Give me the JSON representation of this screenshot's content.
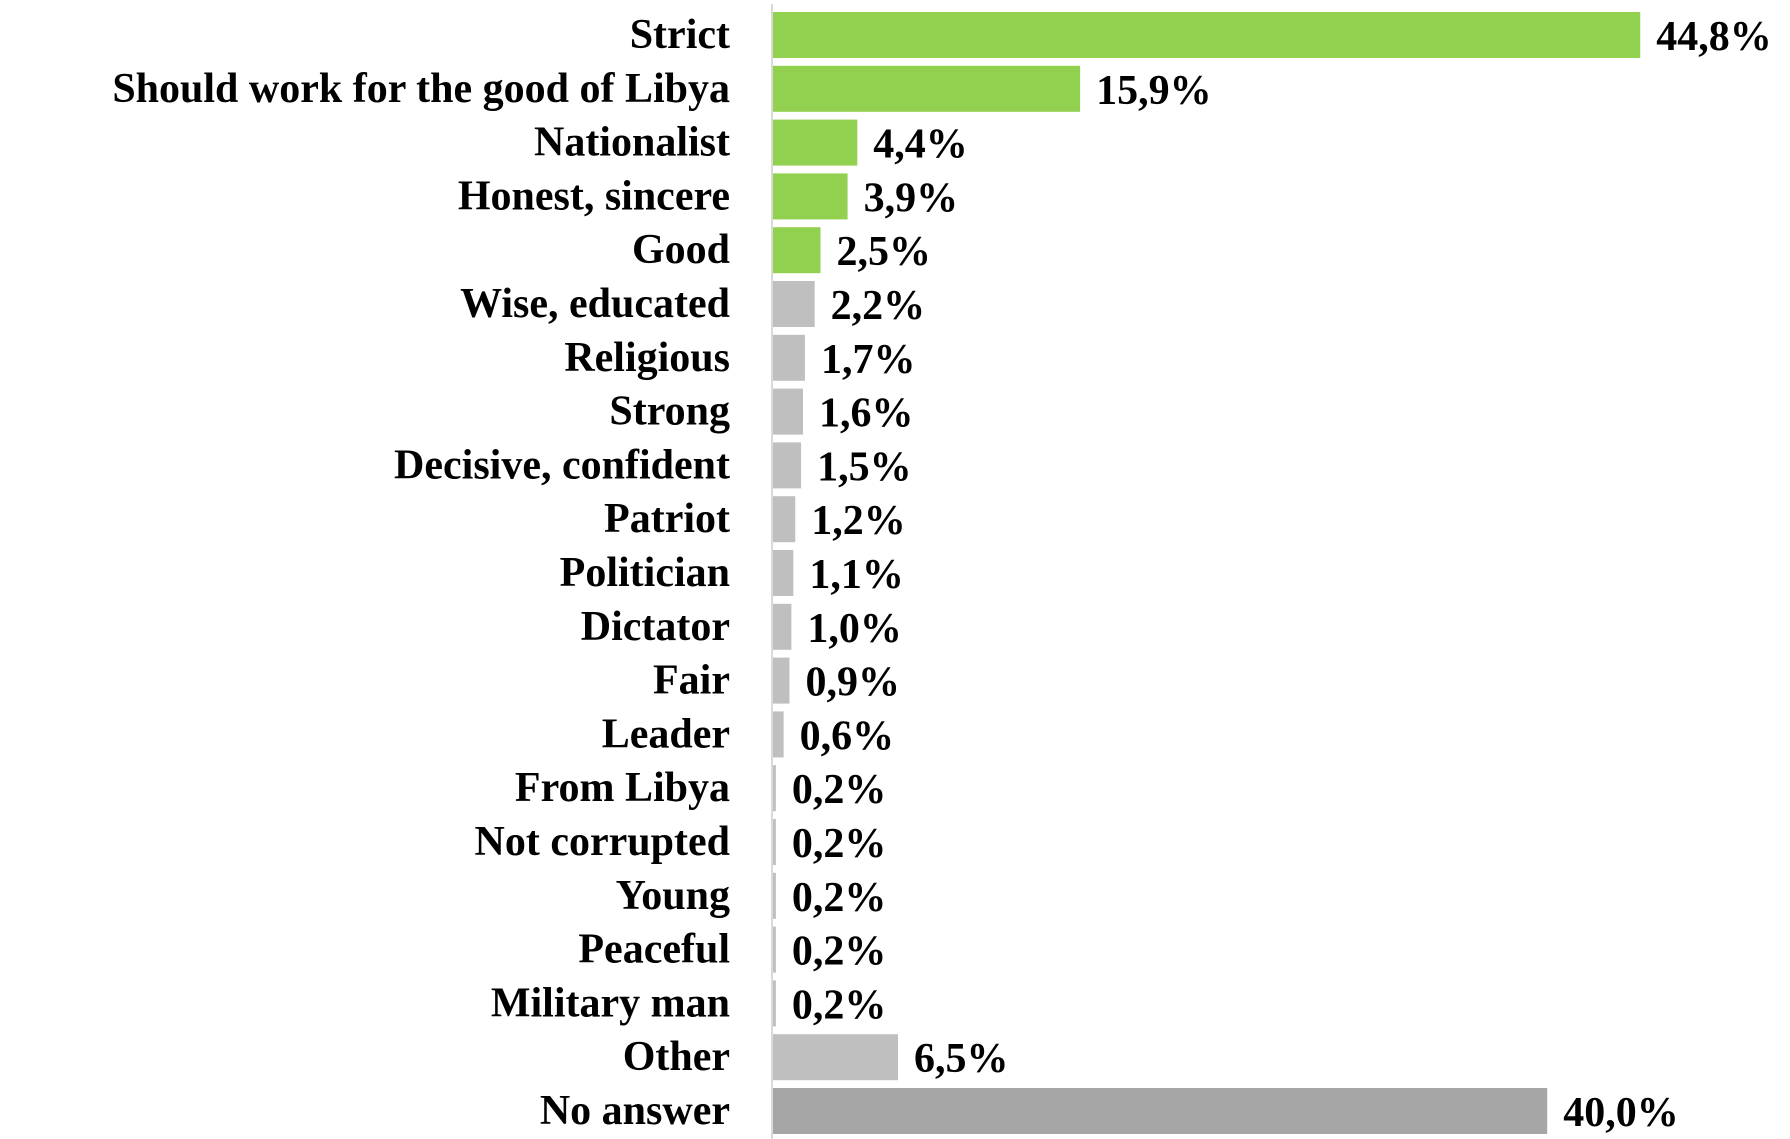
{
  "chart_data": {
    "type": "bar",
    "orientation": "horizontal",
    "categories": [
      "Strict",
      "Should work for the good of Libya",
      "Nationalist",
      "Honest, sincere",
      "Good",
      "Wise, educated",
      "Religious",
      "Strong",
      "Decisive, confident",
      "Patriot",
      "Politician",
      "Dictator",
      "Fair",
      "Leader",
      "From Libya",
      "Not corrupted",
      "Young",
      "Peaceful",
      "Military man",
      "Other",
      "No answer"
    ],
    "values": [
      44.8,
      15.9,
      4.4,
      3.9,
      2.5,
      2.2,
      1.7,
      1.6,
      1.5,
      1.2,
      1.1,
      1.0,
      0.9,
      0.6,
      0.2,
      0.2,
      0.2,
      0.2,
      0.2,
      6.5,
      40.0
    ],
    "value_labels": [
      "44,8%",
      "15,9%",
      "4,4%",
      "3,9%",
      "2,5%",
      "2,2%",
      "1,7%",
      "1,6%",
      "1,5%",
      "1,2%",
      "1,1%",
      "1,0%",
      "0,9%",
      "0,6%",
      "0,2%",
      "0,2%",
      "0,2%",
      "0,2%",
      "0,2%",
      "6,5%",
      "40,0%"
    ],
    "bar_colors": [
      "#92d050",
      "#92d050",
      "#92d050",
      "#92d050",
      "#92d050",
      "#bfbfbf",
      "#bfbfbf",
      "#bfbfbf",
      "#bfbfbf",
      "#bfbfbf",
      "#bfbfbf",
      "#bfbfbf",
      "#bfbfbf",
      "#bfbfbf",
      "#bfbfbf",
      "#bfbfbf",
      "#bfbfbf",
      "#bfbfbf",
      "#bfbfbf",
      "#bfbfbf",
      "#a6a6a6"
    ],
    "xlim": [
      0,
      45
    ],
    "grid": false,
    "legend": "none",
    "title": "",
    "xlabel": "",
    "ylabel": ""
  }
}
